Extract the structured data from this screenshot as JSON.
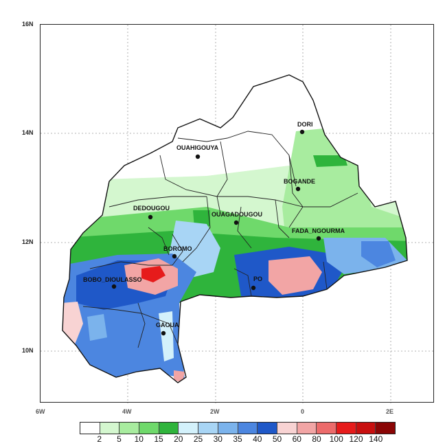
{
  "map": {
    "lat_ticks": [
      "16N",
      "14N",
      "12N",
      "10N"
    ],
    "lon_ticks": [
      "6W",
      "4W",
      "2W",
      "0",
      "2E"
    ]
  },
  "cities": [
    {
      "name": "DORI"
    },
    {
      "name": "OUAHIGOUYA"
    },
    {
      "name": "BOGANDE"
    },
    {
      "name": "DEDOUGOU"
    },
    {
      "name": "OUAGADOUGOU"
    },
    {
      "name": "FADA_NGOURMA"
    },
    {
      "name": "BOROMO"
    },
    {
      "name": "BOBO_DIOULASSO"
    },
    {
      "name": "PO"
    },
    {
      "name": "GAOUA"
    }
  ],
  "colorbar": {
    "labels": [
      "2",
      "5",
      "10",
      "15",
      "20",
      "25",
      "30",
      "35",
      "40",
      "50",
      "60",
      "80",
      "100",
      "120",
      "140"
    ],
    "colors": [
      "#ffffff",
      "#d4f7cf",
      "#a8ec9f",
      "#6fd96b",
      "#2fb43c",
      "#d3f1fb",
      "#a8d5f5",
      "#7bb3ec",
      "#4c86e0",
      "#1f58c8",
      "#f8d3d3",
      "#f2a5a5",
      "#ec6b6b",
      "#e61b1b",
      "#c80f0f",
      "#8a0505"
    ]
  }
}
